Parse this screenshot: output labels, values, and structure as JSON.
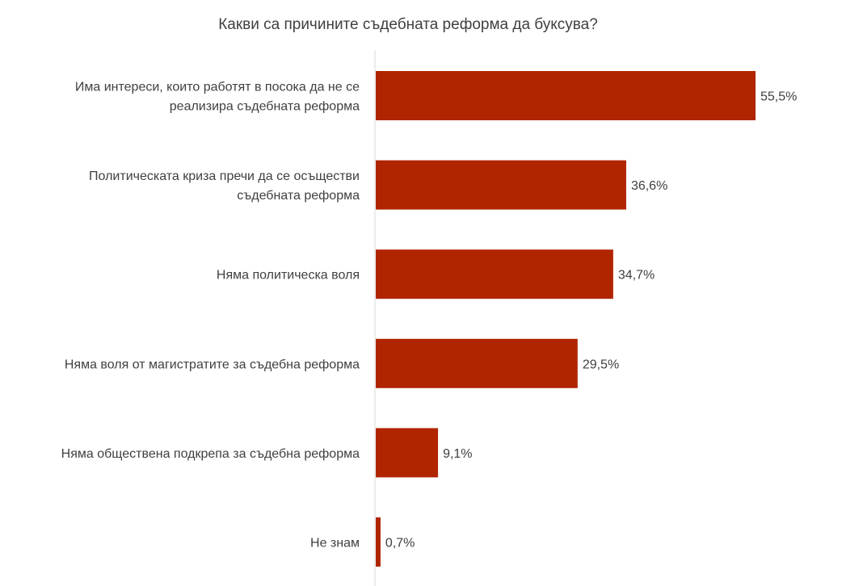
{
  "chart_data": {
    "type": "bar",
    "orientation": "horizontal",
    "title": "Какви са причините съдебната реформа да буксува?",
    "categories": [
      [
        "Има интереси, които работят в посока да не се",
        "реализира съдебната реформа"
      ],
      [
        "Политическата криза пречи да се осъществи",
        "съдебната реформа"
      ],
      [
        "Няма политическа воля"
      ],
      [
        "Няма воля от магистратите за съдебна реформа"
      ],
      [
        "Няма обществена подкрепа за съдебна реформа"
      ],
      [
        "Не знам"
      ]
    ],
    "values": [
      55.5,
      36.6,
      34.7,
      29.5,
      9.1,
      0.7
    ],
    "value_labels": [
      "55,5%",
      "36,6%",
      "34,7%",
      "29,5%",
      "9,1%",
      "0,7%"
    ],
    "xlim": [
      0,
      56
    ],
    "grid": false,
    "legend": "none",
    "bar_color": "#b02500",
    "axis_color": "#d9d9d9"
  }
}
